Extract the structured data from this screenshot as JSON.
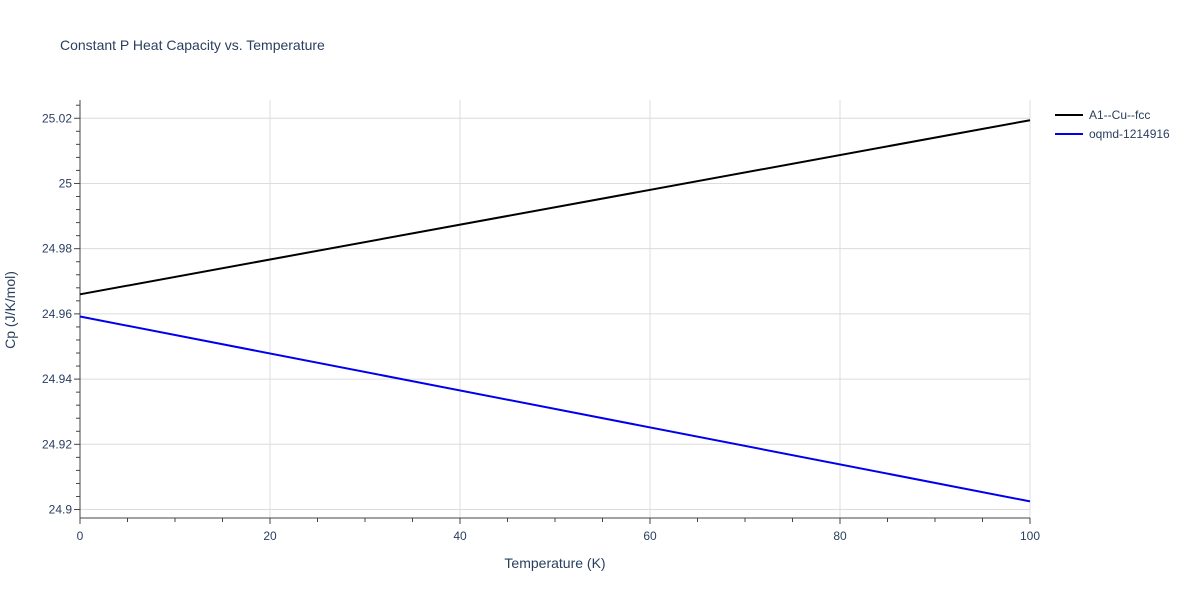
{
  "chart_data": {
    "type": "line",
    "title": "Constant P Heat Capacity vs. Temperature",
    "xlabel": "Temperature (K)",
    "ylabel": "Cp (J/K/mol)",
    "xlim": [
      0,
      100
    ],
    "ylim": [
      24.8974,
      25.0256
    ],
    "x_ticks": [
      0,
      20,
      40,
      60,
      80,
      100
    ],
    "x_tick_labels": [
      "0",
      "20",
      "40",
      "60",
      "80",
      "100"
    ],
    "y_ticks": [
      24.9,
      24.92,
      24.94,
      24.96,
      24.98,
      25.0,
      25.02
    ],
    "y_tick_labels": [
      "24.9",
      "24.92",
      "24.94",
      "24.96",
      "24.98",
      "25",
      "25.02"
    ],
    "grid": true,
    "legend_position": "top-right",
    "series": [
      {
        "name": "A1--Cu--fcc",
        "color": "#000000",
        "x": [
          0,
          100
        ],
        "y": [
          24.966,
          25.0194
        ]
      },
      {
        "name": "oqmd-1214916",
        "color": "#0000ee",
        "x": [
          0,
          100
        ],
        "y": [
          24.9592,
          24.9025
        ]
      }
    ]
  }
}
